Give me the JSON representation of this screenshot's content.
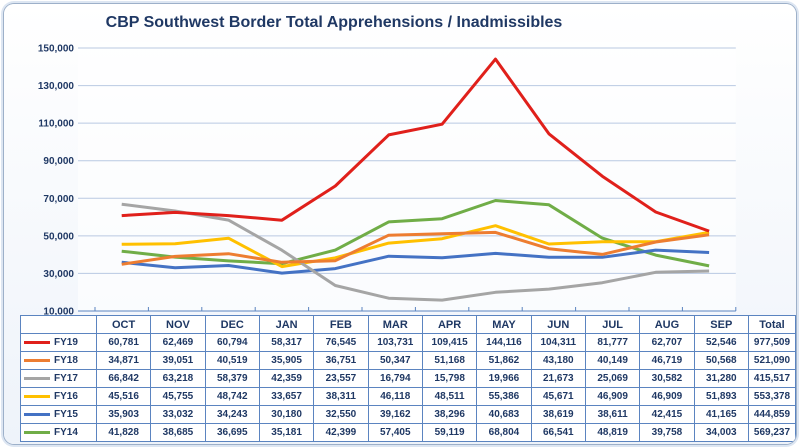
{
  "chart_data": {
    "type": "line",
    "title": "CBP Southwest Border Total Apprehensions / Inadmissibles",
    "categories": [
      "OCT",
      "NOV",
      "DEC",
      "JAN",
      "FEB",
      "MAR",
      "APR",
      "MAY",
      "JUN",
      "JUL",
      "AUG",
      "SEP"
    ],
    "total_label": "Total",
    "ylim": [
      10000,
      150000
    ],
    "yticks": [
      "10,000",
      "30,000",
      "50,000",
      "70,000",
      "90,000",
      "110,000",
      "130,000",
      "150,000"
    ],
    "grid": true,
    "legend": "data-table",
    "series": [
      {
        "name": "FY19",
        "color": "#e0201b",
        "values": [
          60781,
          62469,
          60794,
          58317,
          76545,
          103731,
          109415,
          144116,
          104311,
          81777,
          62707,
          52546
        ],
        "labels": [
          "60,781",
          "62,469",
          "60,794",
          "58,317",
          "76,545",
          "103,731",
          "109,415",
          "144,116",
          "104,311",
          "81,777",
          "62,707",
          "52,546"
        ],
        "total": "977,509"
      },
      {
        "name": "FY18",
        "color": "#ed7d31",
        "values": [
          34871,
          39051,
          40519,
          35905,
          36751,
          50347,
          51168,
          51862,
          43180,
          40149,
          46719,
          50568
        ],
        "labels": [
          "34,871",
          "39,051",
          "40,519",
          "35,905",
          "36,751",
          "50,347",
          "51,168",
          "51,862",
          "43,180",
          "40,149",
          "46,719",
          "50,568"
        ],
        "total": "521,090"
      },
      {
        "name": "FY17",
        "color": "#a5a5a5",
        "values": [
          66842,
          63218,
          58379,
          42359,
          23557,
          16794,
          15798,
          19966,
          21673,
          25069,
          30582,
          31280
        ],
        "labels": [
          "66,842",
          "63,218",
          "58,379",
          "42,359",
          "23,557",
          "16,794",
          "15,798",
          "19,966",
          "21,673",
          "25,069",
          "30,582",
          "31,280"
        ],
        "total": "415,517"
      },
      {
        "name": "FY16",
        "color": "#ffc000",
        "values": [
          45516,
          45755,
          48742,
          33657,
          38311,
          46118,
          48511,
          55386,
          45671,
          46909,
          46909,
          51893
        ],
        "labels": [
          "45,516",
          "45,755",
          "48,742",
          "33,657",
          "38,311",
          "46,118",
          "48,511",
          "55,386",
          "45,671",
          "46,909",
          "46,909",
          "51,893"
        ],
        "total": "553,378"
      },
      {
        "name": "FY15",
        "color": "#4472c4",
        "values": [
          35903,
          33032,
          34243,
          30180,
          32550,
          39162,
          38296,
          40683,
          38619,
          38611,
          42415,
          41165
        ],
        "labels": [
          "35,903",
          "33,032",
          "34,243",
          "30,180",
          "32,550",
          "39,162",
          "38,296",
          "40,683",
          "38,619",
          "38,611",
          "42,415",
          "41,165"
        ],
        "total": "444,859"
      },
      {
        "name": "FY14",
        "color": "#70ad47",
        "values": [
          41828,
          38685,
          36695,
          35181,
          42399,
          57405,
          59119,
          68804,
          66541,
          48819,
          39758,
          34003
        ],
        "labels": [
          "41,828",
          "38,685",
          "36,695",
          "35,181",
          "42,399",
          "57,405",
          "59,119",
          "68,804",
          "66,541",
          "48,819",
          "39,758",
          "34,003"
        ],
        "total": "569,237"
      }
    ]
  }
}
